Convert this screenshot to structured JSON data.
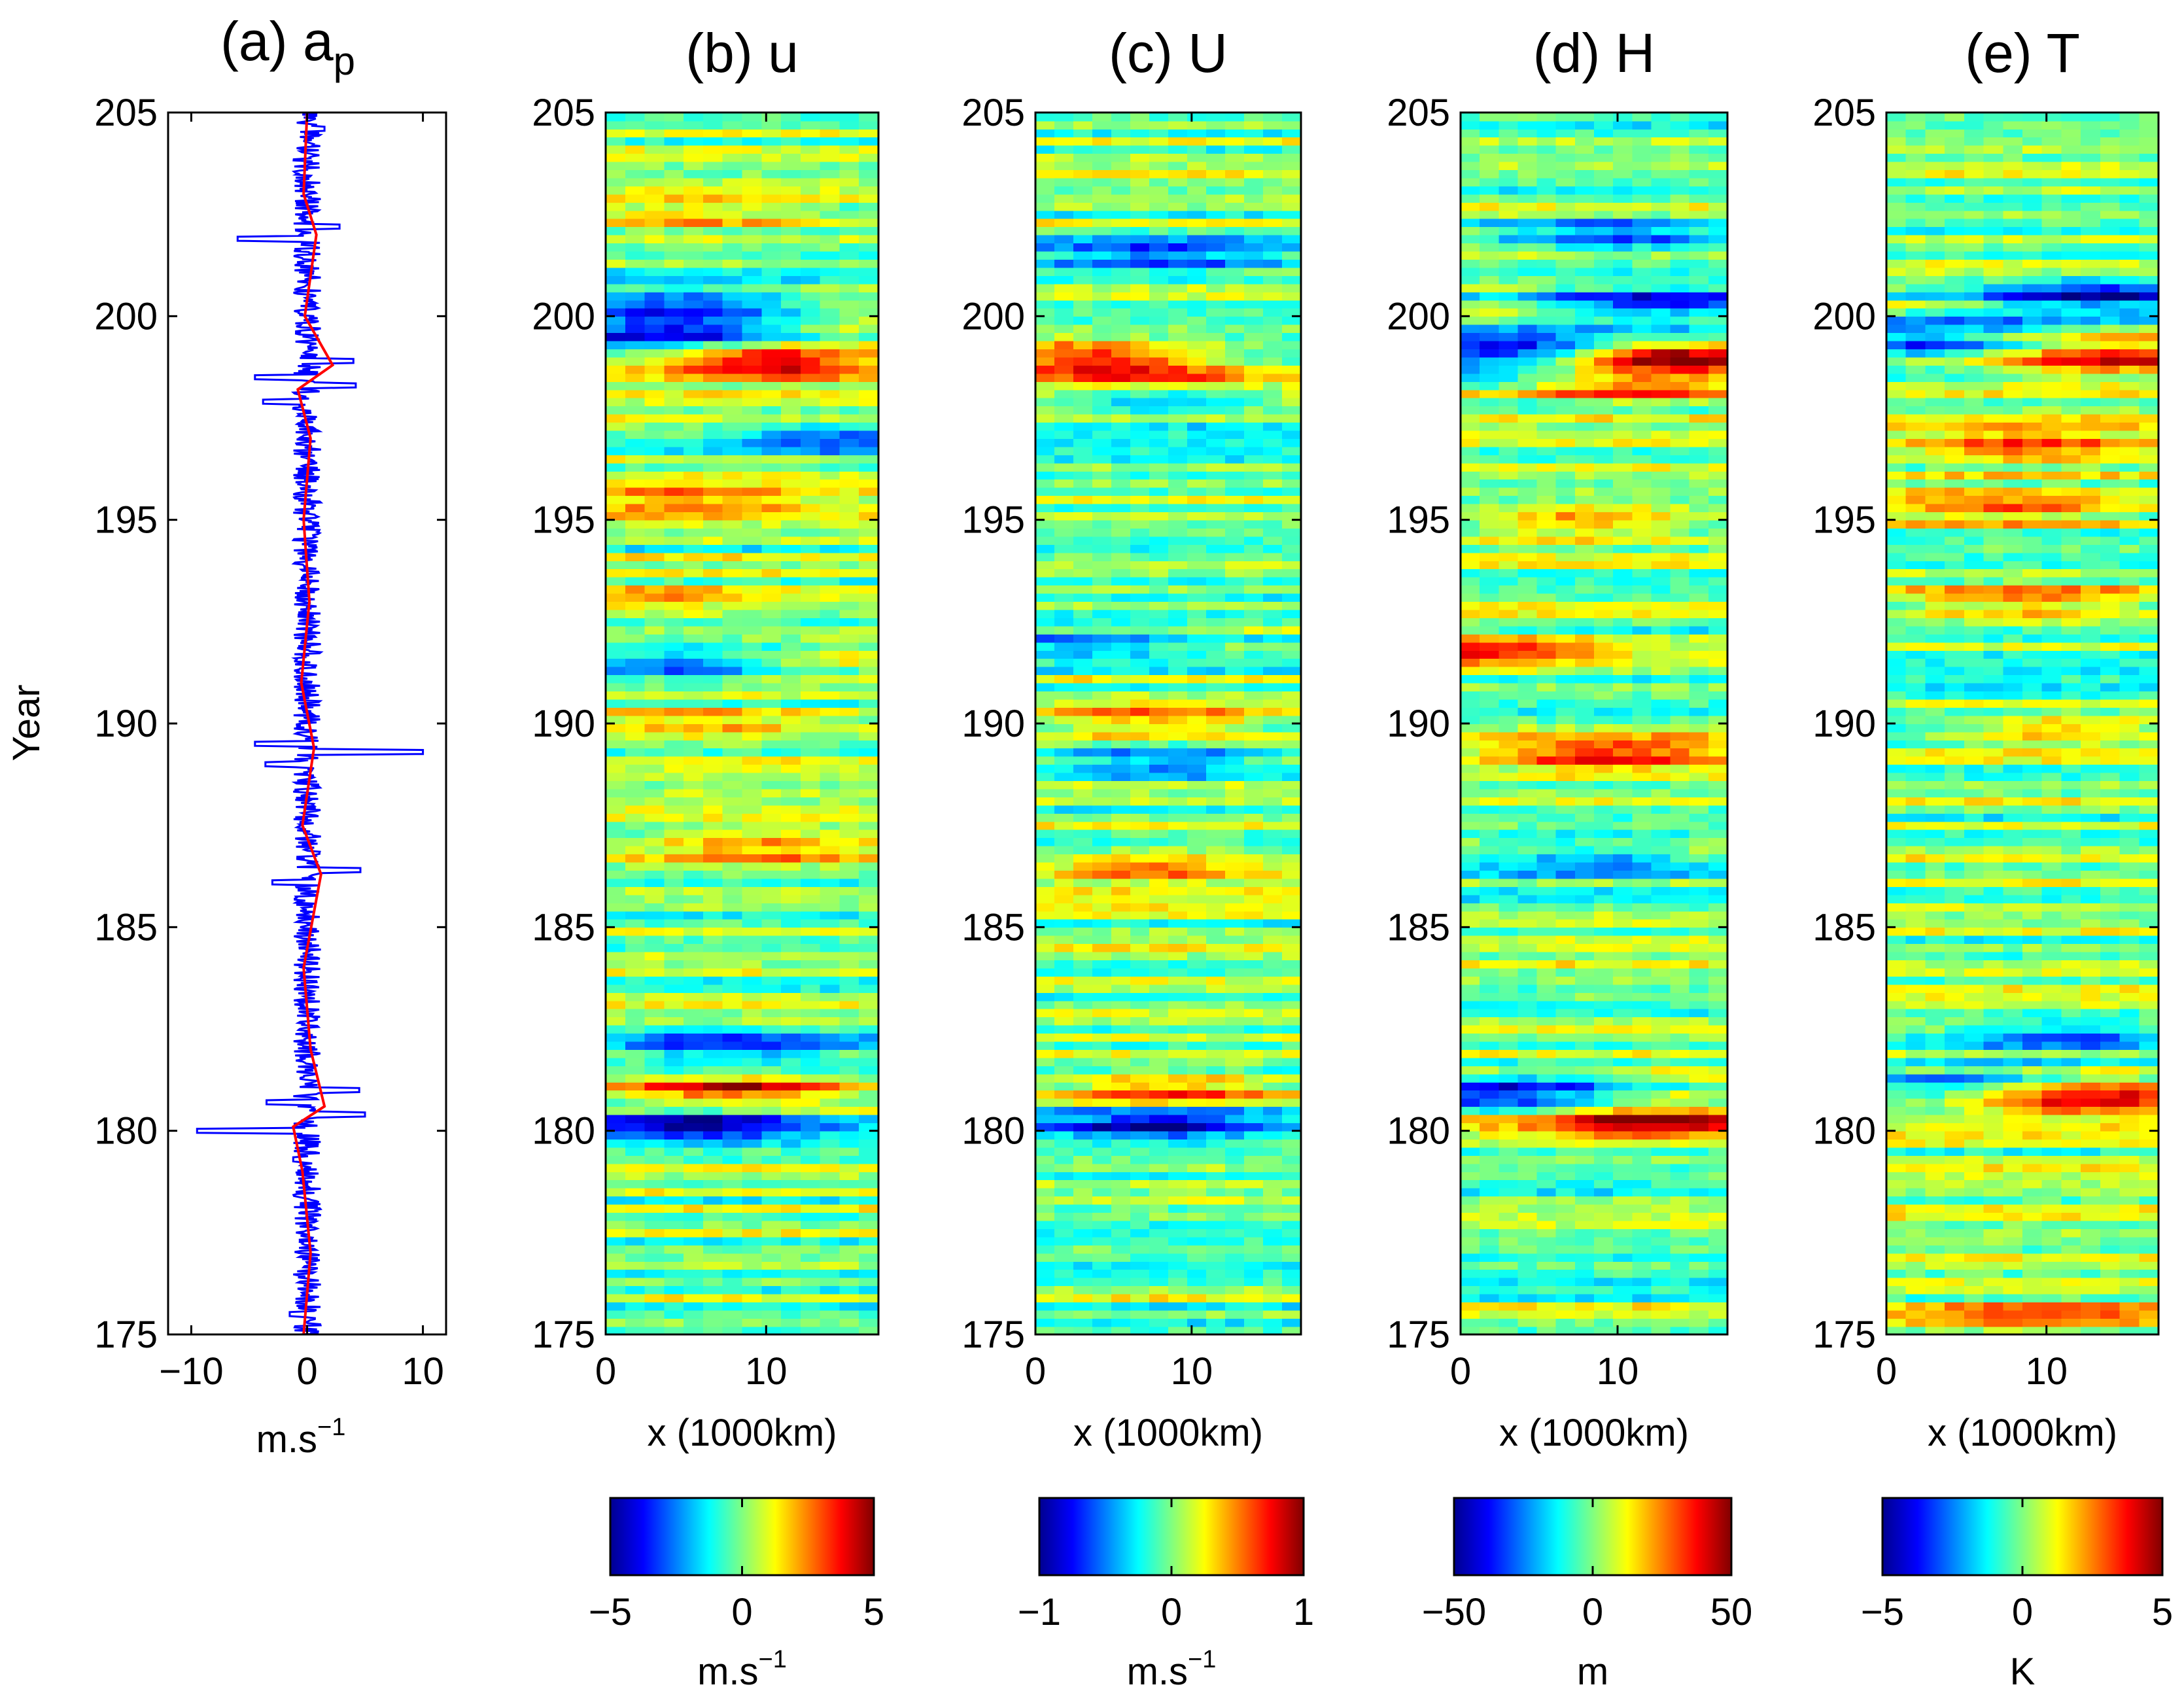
{
  "figure": {
    "ylabel": "Year",
    "xlabel": "x (1000km)"
  },
  "chart_data": [
    {
      "type": "line",
      "panel": "a",
      "title": "(a)  a",
      "title_subscript": "p",
      "xlabel": "m.s",
      "xlabel_superscript": "−1",
      "ylabel": "Year",
      "xlim": [
        -12,
        12
      ],
      "ylim": [
        175,
        205
      ],
      "xticks": [
        -10,
        0,
        10
      ],
      "xtick_labels": [
        "−10",
        "0",
        "10"
      ],
      "yticks": [
        175,
        180,
        185,
        190,
        195,
        200,
        205
      ],
      "series": [
        {
          "name": "raw",
          "color": "#0000ff",
          "spikes": [
            [
              175.5,
              -1.5
            ],
            [
              179.3,
              -1.2
            ],
            [
              180.0,
              -9.5
            ],
            [
              180.4,
              5.0
            ],
            [
              180.7,
              -3.5
            ],
            [
              181.0,
              4.5
            ],
            [
              186.1,
              -3.0
            ],
            [
              186.4,
              4.6
            ],
            [
              189.0,
              -3.6
            ],
            [
              189.3,
              10.0
            ],
            [
              189.5,
              -4.5
            ],
            [
              197.9,
              -3.8
            ],
            [
              198.3,
              4.2
            ],
            [
              198.5,
              -4.5
            ],
            [
              198.9,
              4.0
            ],
            [
              201.9,
              -6.0
            ],
            [
              202.2,
              2.8
            ],
            [
              204.6,
              1.5
            ]
          ]
        },
        {
          "name": "smoothed",
          "color": "#ff0000",
          "points": [
            [
              175,
              -0.3
            ],
            [
              177,
              0.3
            ],
            [
              179,
              -0.4
            ],
            [
              180.1,
              -1.2
            ],
            [
              180.6,
              1.5
            ],
            [
              182,
              0.3
            ],
            [
              184,
              -0.3
            ],
            [
              186.3,
              1.2
            ],
            [
              187.5,
              -0.4
            ],
            [
              189.4,
              0.6
            ],
            [
              191,
              -0.5
            ],
            [
              193,
              0.2
            ],
            [
              195,
              -0.3
            ],
            [
              197,
              0.3
            ],
            [
              198.2,
              -0.8
            ],
            [
              198.8,
              2.2
            ],
            [
              200,
              -0.2
            ],
            [
              202,
              0.8
            ],
            [
              203,
              -0.3
            ],
            [
              205,
              0.0
            ]
          ]
        }
      ]
    },
    {
      "type": "heatmap",
      "panel": "b",
      "title": "(b)  u",
      "xlabel": "x (1000km)",
      "xlim": [
        0,
        17
      ],
      "ylim": [
        175,
        205
      ],
      "xticks": [
        0,
        10
      ],
      "yticks": [
        175,
        180,
        185,
        190,
        195,
        200,
        205
      ],
      "colorbar": {
        "min": -5,
        "max": 5,
        "ticks": [
          "−5",
          "0",
          "5"
        ],
        "label": "m.s",
        "label_superscript": "−1"
      },
      "background": 0.0,
      "features": [
        [
          181.0,
          4.3,
          8
        ],
        [
          198.9,
          4.6,
          10
        ],
        [
          199.6,
          -4.3,
          4
        ],
        [
          200.3,
          -3.6,
          5
        ],
        [
          191.5,
          -3.5,
          4
        ],
        [
          197.0,
          -2.5,
          15
        ],
        [
          182.0,
          -3.0,
          8
        ],
        [
          180.2,
          -4.0,
          6
        ],
        [
          187.0,
          2.0,
          10
        ],
        [
          190.0,
          2.0,
          6
        ],
        [
          193.0,
          1.5,
          3
        ],
        [
          202.5,
          2.0,
          5
        ],
        [
          195.5,
          1.8,
          5
        ]
      ]
    },
    {
      "type": "heatmap",
      "panel": "c",
      "title": "(c)  U",
      "xlabel": "x (1000km)",
      "xlim": [
        0,
        17
      ],
      "ylim": [
        175,
        205
      ],
      "xticks": [
        0,
        10
      ],
      "yticks": [
        175,
        180,
        185,
        190,
        195,
        200,
        205
      ],
      "colorbar": {
        "min": -1,
        "max": 1,
        "ticks": [
          "−1",
          "0",
          "1"
        ],
        "label": "m.s",
        "label_superscript": "−1"
      },
      "background": 0.0,
      "features": [
        [
          180.2,
          -0.8,
          8
        ],
        [
          181.0,
          0.6,
          8
        ],
        [
          189.1,
          -0.6,
          8
        ],
        [
          190.0,
          0.5,
          8
        ],
        [
          198.0,
          -0.7,
          8
        ],
        [
          198.5,
          0.5,
          8
        ],
        [
          199.0,
          0.8,
          3
        ],
        [
          192.0,
          -0.4,
          3
        ],
        [
          201.5,
          -0.5,
          8
        ],
        [
          186.5,
          0.5,
          8
        ]
      ]
    },
    {
      "type": "heatmap",
      "panel": "d",
      "title": "(d)  H",
      "xlabel": "x (1000km)",
      "xlim": [
        0,
        17
      ],
      "ylim": [
        175,
        205
      ],
      "xticks": [
        0,
        10
      ],
      "yticks": [
        175,
        180,
        185,
        190,
        195,
        200,
        205
      ],
      "colorbar": {
        "min": -50,
        "max": 50,
        "ticks": [
          "−50",
          "0",
          "50"
        ],
        "label": "m",
        "label_superscript": ""
      },
      "background": 0.0,
      "features": [
        [
          180.3,
          40,
          12
        ],
        [
          181.0,
          -40,
          3
        ],
        [
          199.1,
          -45,
          3
        ],
        [
          199.0,
          45,
          13
        ],
        [
          198.3,
          30,
          12
        ],
        [
          200.3,
          -35,
          13
        ],
        [
          191.8,
          30,
          1
        ],
        [
          189.2,
          30,
          10
        ],
        [
          195.0,
          25,
          8
        ],
        [
          202.0,
          -30,
          10
        ],
        [
          186.7,
          -25,
          8
        ]
      ]
    },
    {
      "type": "heatmap",
      "panel": "e",
      "title": "(e)  T",
      "xlabel": "x (1000km)",
      "xlim": [
        0,
        17
      ],
      "ylim": [
        175,
        205
      ],
      "xticks": [
        0,
        10
      ],
      "yticks": [
        175,
        180,
        185,
        190,
        195,
        200,
        205
      ],
      "colorbar": {
        "min": -5,
        "max": 5,
        "ticks": [
          "−5",
          "0",
          "5"
        ],
        "label": "K",
        "label_superscript": ""
      },
      "background": 0.0,
      "features": [
        [
          180.8,
          4.3,
          13
        ],
        [
          182.3,
          -2.5,
          11
        ],
        [
          181.2,
          -2.0,
          4
        ],
        [
          199.0,
          4.5,
          14
        ],
        [
          199.5,
          -3.0,
          3
        ],
        [
          200.5,
          -4.2,
          13
        ],
        [
          196.8,
          3.0,
          9
        ],
        [
          195.3,
          2.5,
          7
        ],
        [
          193.0,
          2.0,
          9
        ],
        [
          189.8,
          2.5,
          11
        ],
        [
          175.5,
          2.0,
          9
        ]
      ]
    }
  ]
}
